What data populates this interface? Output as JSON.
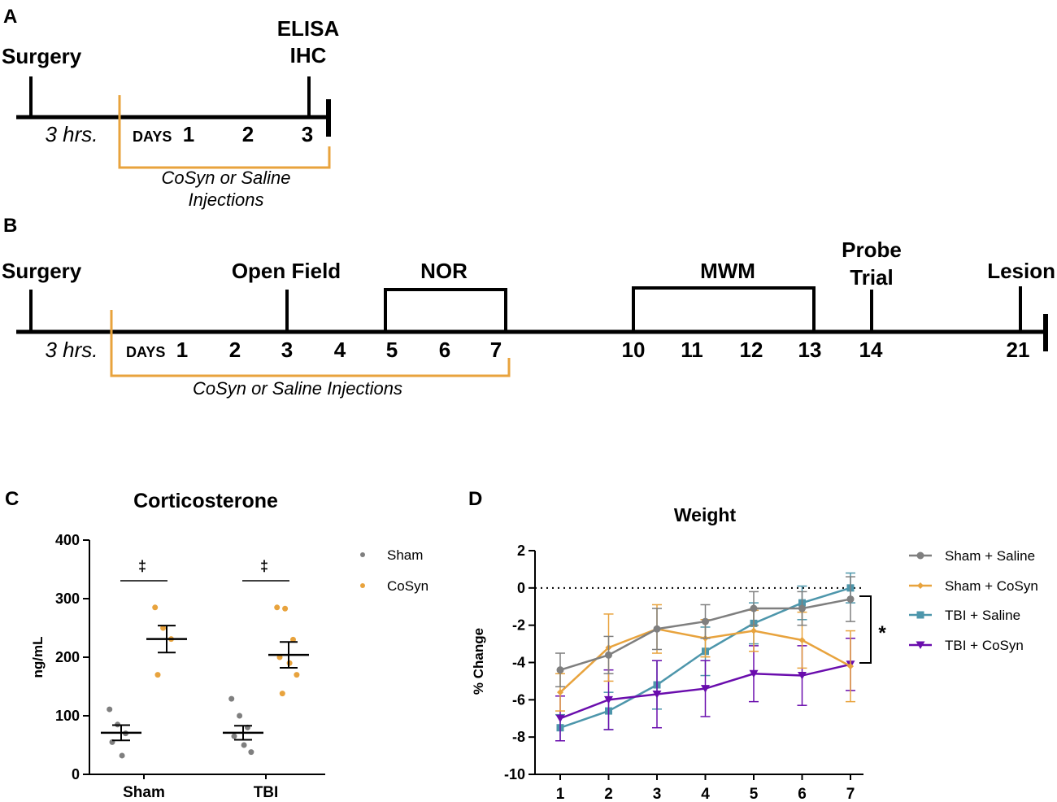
{
  "panel_labels": {
    "a": "A",
    "b": "B",
    "c": "C",
    "d": "D"
  },
  "colors": {
    "sham_saline": "#7f7f7f",
    "sham_cosyn": "#e8a33d",
    "tbi_saline": "#4d96ab",
    "tbi_cosyn": "#6a0dad",
    "bracket": "#e8a33d"
  },
  "timeline_a": {
    "surgery": "Surgery",
    "endpoint_line1": "ELISA",
    "endpoint_line2": "IHC",
    "hrs": "3 hrs.",
    "days_label": "DAYS",
    "days": [
      "1",
      "2",
      "3"
    ],
    "injection_line1": "CoSyn or Saline",
    "injection_line2": "Injections"
  },
  "timeline_b": {
    "surgery": "Surgery",
    "open_field": "Open Field",
    "nor": "NOR",
    "mwm": "MWM",
    "probe_line1": "Probe",
    "probe_line2": "Trial",
    "lesion": "Lesion",
    "hrs": "3 hrs.",
    "days_label": "DAYS",
    "days": [
      "1",
      "2",
      "3",
      "4",
      "5",
      "6",
      "7",
      "10",
      "11",
      "12",
      "13",
      "14",
      "21"
    ],
    "injection": "CoSyn or Saline Injections"
  },
  "chart_data": [
    {
      "type": "scatter",
      "title": "Corticosterone",
      "xlabel": "",
      "ylabel": "ng/mL",
      "ylim": [
        0,
        400
      ],
      "yticks": [
        "0",
        "100",
        "200",
        "300",
        "400"
      ],
      "categories": [
        "Sham",
        "TBI"
      ],
      "legend": [
        "Sham",
        "CoSyn"
      ],
      "significance_marker": "‡",
      "series": [
        {
          "name": "Sham",
          "category": "Sham",
          "points": [
            111,
            85,
            70,
            55,
            32
          ],
          "mean": 71,
          "sem": 13
        },
        {
          "name": "CoSyn",
          "category": "Sham",
          "points": [
            285,
            250,
            231,
            170
          ],
          "mean": 231,
          "sem": 23
        },
        {
          "name": "Sham",
          "category": "TBI",
          "points": [
            129,
            100,
            80,
            65,
            50,
            38
          ],
          "mean": 71,
          "sem": 12
        },
        {
          "name": "CoSyn",
          "category": "TBI",
          "points": [
            285,
            283,
            230,
            200,
            190,
            170,
            138
          ],
          "mean": 204,
          "sem": 22
        }
      ]
    },
    {
      "type": "line",
      "title": "Weight",
      "xlabel": "",
      "ylabel": "% Change",
      "ylim": [
        -10,
        2
      ],
      "yticks": [
        "2",
        "0",
        "-2",
        "-4",
        "-6",
        "-8",
        "-10"
      ],
      "x": [
        "1",
        "2",
        "3",
        "4",
        "5",
        "6",
        "7"
      ],
      "significance_marker": "*",
      "series": [
        {
          "name": "Sham + Saline",
          "values": [
            -4.4,
            -3.6,
            -2.2,
            -1.8,
            -1.1,
            -1.1,
            -0.6
          ],
          "errors": [
            0.9,
            1.0,
            1.1,
            0.9,
            0.9,
            0.9,
            1.2
          ]
        },
        {
          "name": "Sham + CoSyn",
          "values": [
            -5.6,
            -3.2,
            -2.2,
            -2.7,
            -2.3,
            -2.8,
            -4.2
          ],
          "errors": [
            1.0,
            1.8,
            1.3,
            1.0,
            1.1,
            1.5,
            1.9
          ]
        },
        {
          "name": "TBI + Saline",
          "values": [
            -7.5,
            -6.6,
            -5.2,
            -3.4,
            -1.9,
            -0.8,
            0.0
          ],
          "errors": [
            0.7,
            1.0,
            1.3,
            1.3,
            1.1,
            0.9,
            0.8
          ]
        },
        {
          "name": "TBI + CoSyn",
          "values": [
            -7.0,
            -6.0,
            -5.7,
            -5.4,
            -4.6,
            -4.7,
            -4.1
          ],
          "errors": [
            1.2,
            1.6,
            1.8,
            1.5,
            1.5,
            1.6,
            1.4
          ]
        }
      ]
    }
  ]
}
